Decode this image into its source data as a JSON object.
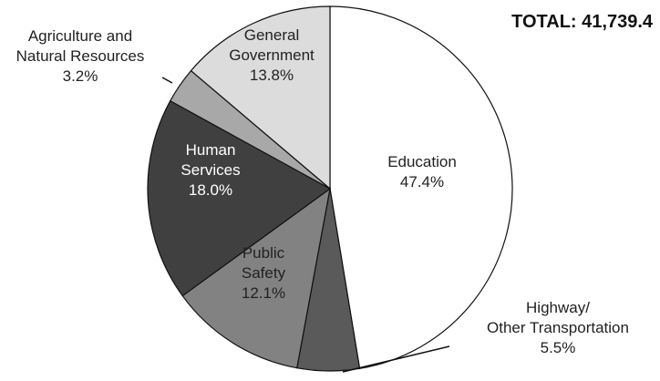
{
  "chart_data": {
    "type": "pie",
    "total_label": "TOTAL: 41,739.4",
    "slices": [
      {
        "name_lines": [
          "Education"
        ],
        "value": 47.4,
        "pct_label": "47.4%",
        "color": "#ffffff",
        "text_color": "#222222"
      },
      {
        "name_lines": [
          "Highway/",
          "Other Transportation"
        ],
        "value": 5.5,
        "pct_label": "5.5%",
        "color": "#5a5a5a",
        "text_color": "#222222"
      },
      {
        "name_lines": [
          "Public",
          "Safety"
        ],
        "value": 12.1,
        "pct_label": "12.1%",
        "color": "#828282",
        "text_color": "#222222"
      },
      {
        "name_lines": [
          "Human",
          "Services"
        ],
        "value": 18.0,
        "pct_label": "18.0%",
        "color": "#404040",
        "text_color": "#ffffff"
      },
      {
        "name_lines": [
          "Agriculture and",
          "Natural Resources"
        ],
        "value": 3.2,
        "pct_label": "3.2%",
        "color": "#a8a8a8",
        "text_color": "#222222"
      },
      {
        "name_lines": [
          "General",
          "Government"
        ],
        "value": 13.8,
        "pct_label": "13.8%",
        "color": "#dcdcdc",
        "text_color": "#222222"
      }
    ]
  }
}
